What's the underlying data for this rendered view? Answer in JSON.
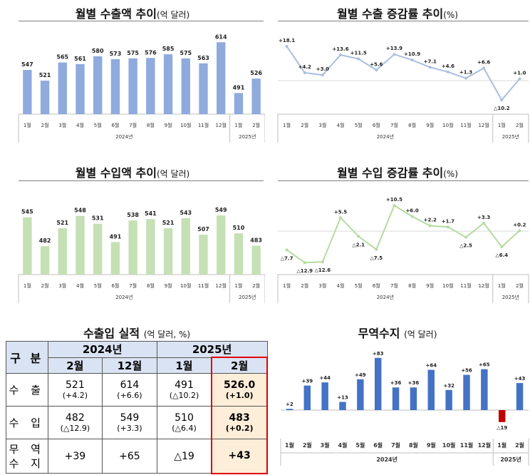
{
  "panels": {
    "export_amount": {
      "title": "월별 수출액 추이",
      "unit": "(억 달러)",
      "months": [
        "1월",
        "2월",
        "3월",
        "4월",
        "5월",
        "6월",
        "7월",
        "8월",
        "9월",
        "10월",
        "11월",
        "12월",
        "1월",
        "2월"
      ],
      "values": [
        547,
        521,
        565,
        561,
        580,
        573,
        575,
        576,
        585,
        575,
        563,
        614,
        491,
        526
      ],
      "labels": [
        "547",
        "521",
        "565",
        "561",
        "580",
        "573",
        "575",
        "576",
        "585",
        "575",
        "563",
        "614",
        "491",
        "526"
      ],
      "year_labels": [
        "2024년",
        "2025년"
      ],
      "color": "#8faadc"
    },
    "export_growth": {
      "title": "월별 수출 증감률 추이",
      "unit": "(%)",
      "months": [
        "1월",
        "2월",
        "3월",
        "4월",
        "5월",
        "6월",
        "7월",
        "8월",
        "9월",
        "10월",
        "11월",
        "12월",
        "1월",
        "2월"
      ],
      "values": [
        18.1,
        4.2,
        3.0,
        13.6,
        11.5,
        5.6,
        13.9,
        10.9,
        7.1,
        4.6,
        1.3,
        6.6,
        -10.2,
        1.0
      ],
      "labels": [
        "+18.1",
        "+4.2",
        "+3.0",
        "+13.6",
        "+11.5",
        "+5.6",
        "+13.9",
        "+10.9",
        "+7.1",
        "+4.6",
        "+1.3",
        "+6.6",
        "△10.2",
        "+1.0"
      ],
      "year_labels": [
        "2024년",
        "2025년"
      ],
      "color": "#a9bfdf"
    },
    "import_amount": {
      "title": "월별 수입액 추이",
      "unit": "(억 달러)",
      "months": [
        "1월",
        "2월",
        "3월",
        "4월",
        "5월",
        "6월",
        "7월",
        "8월",
        "9월",
        "10월",
        "11월",
        "12월",
        "1월",
        "2월"
      ],
      "values": [
        545,
        482,
        521,
        548,
        531,
        491,
        538,
        541,
        521,
        543,
        507,
        549,
        510,
        483
      ],
      "labels": [
        "545",
        "482",
        "521",
        "548",
        "531",
        "491",
        "538",
        "541",
        "521",
        "543",
        "507",
        "549",
        "510",
        "483"
      ],
      "year_labels": [
        "2024년",
        "2025년"
      ],
      "color": "#c5e0b4"
    },
    "import_growth": {
      "title": "월별 수입 증감률 추이",
      "unit": "(%)",
      "months": [
        "1월",
        "2월",
        "3월",
        "4월",
        "5월",
        "6월",
        "7월",
        "8월",
        "9월",
        "10월",
        "11월",
        "12월",
        "1월",
        "2월"
      ],
      "values": [
        -7.7,
        -12.9,
        -12.6,
        5.5,
        -2.1,
        -7.5,
        10.5,
        6.0,
        2.2,
        1.7,
        -2.5,
        3.3,
        -6.4,
        0.2
      ],
      "labels": [
        "△7.7",
        "△12.9",
        "△12.6",
        "+5.5",
        "△2.1",
        "△7.5",
        "+10.5",
        "+6.0",
        "+2.2",
        "+1.7",
        "△2.5",
        "+3.3",
        "△6.4",
        "+0.2"
      ],
      "year_labels": [
        "2024년",
        "2025년"
      ],
      "color": "#b5dba0"
    },
    "balance": {
      "title": "무역수지",
      "unit": "(억 달러)",
      "months": [
        "1월",
        "2월",
        "3월",
        "4월",
        "5월",
        "6월",
        "7월",
        "8월",
        "9월",
        "10월",
        "11월",
        "12월",
        "1월",
        "2월"
      ],
      "values": [
        2,
        39,
        44,
        13,
        49,
        83,
        36,
        36,
        64,
        32,
        56,
        65,
        -19,
        43
      ],
      "labels": [
        "+2",
        "+39",
        "+44",
        "+13",
        "+49",
        "+83",
        "+36",
        "+36",
        "+64",
        "+32",
        "+56",
        "+65",
        "△19",
        "+43"
      ],
      "year_labels": [
        "2024년",
        "2025년"
      ],
      "color": "#4472c4",
      "neg_color": "#c00000"
    }
  },
  "table": {
    "title": "수출입 실적",
    "unit": "(억 달러, %)",
    "corner": "구 분",
    "year_2024": "2024년",
    "year_2025": "2025년",
    "col_feb24": "2월",
    "col_dec24": "12월",
    "col_jan25": "1월",
    "col_feb25": "2월",
    "export_label": "수 출",
    "import_label": "수 입",
    "balance_label_1": "무 역",
    "balance_label_2": "수 지",
    "export": {
      "v1": "521",
      "r1": "(+4.2)",
      "v2": "614",
      "r2": "(+6.6)",
      "v3": "491",
      "r3": "(△10.2)",
      "v4": "526.0",
      "r4": "(+1.0)"
    },
    "import": {
      "v1": "482",
      "r1": "(△12.9)",
      "v2": "549",
      "r2": "(+3.3)",
      "v3": "510",
      "r3": "(△6.4)",
      "v4": "483",
      "r4": "(+0.2)"
    },
    "balance": {
      "v1": "+39",
      "v2": "+65",
      "v3": "△19",
      "v4": "+43"
    }
  },
  "chart_data": [
    {
      "type": "bar",
      "title": "월별 수출액 추이(억 달러)",
      "categories": [
        "1월",
        "2월",
        "3월",
        "4월",
        "5월",
        "6월",
        "7월",
        "8월",
        "9월",
        "10월",
        "11월",
        "12월",
        "1월",
        "2월"
      ],
      "values": [
        547,
        521,
        565,
        561,
        580,
        573,
        575,
        576,
        585,
        575,
        563,
        614,
        491,
        526
      ]
    },
    {
      "type": "line",
      "title": "월별 수출 증감률 추이(%)",
      "categories": [
        "1월",
        "2월",
        "3월",
        "4월",
        "5월",
        "6월",
        "7월",
        "8월",
        "9월",
        "10월",
        "11월",
        "12월",
        "1월",
        "2월"
      ],
      "values": [
        18.1,
        4.2,
        3.0,
        13.6,
        11.5,
        5.6,
        13.9,
        10.9,
        7.1,
        4.6,
        1.3,
        6.6,
        -10.2,
        1.0
      ]
    },
    {
      "type": "bar",
      "title": "월별 수입액 추이(억 달러)",
      "categories": [
        "1월",
        "2월",
        "3월",
        "4월",
        "5월",
        "6월",
        "7월",
        "8월",
        "9월",
        "10월",
        "11월",
        "12월",
        "1월",
        "2월"
      ],
      "values": [
        545,
        482,
        521,
        548,
        531,
        491,
        538,
        541,
        521,
        543,
        507,
        549,
        510,
        483
      ]
    },
    {
      "type": "line",
      "title": "월별 수입 증감률 추이(%)",
      "categories": [
        "1월",
        "2월",
        "3월",
        "4월",
        "5월",
        "6월",
        "7월",
        "8월",
        "9월",
        "10월",
        "11월",
        "12월",
        "1월",
        "2월"
      ],
      "values": [
        -7.7,
        -12.9,
        -12.6,
        5.5,
        -2.1,
        -7.5,
        10.5,
        6.0,
        2.2,
        1.7,
        -2.5,
        3.3,
        -6.4,
        0.2
      ]
    },
    {
      "type": "table",
      "title": "수출입 실적(억 달러, %)",
      "columns": [
        "2024년 2월",
        "2024년 12월",
        "2025년 1월",
        "2025년 2월"
      ],
      "rows": [
        {
          "name": "수출",
          "values": [
            521,
            614,
            491,
            526.0
          ],
          "growth": [
            4.2,
            6.6,
            -10.2,
            1.0
          ]
        },
        {
          "name": "수입",
          "values": [
            482,
            549,
            510,
            483
          ],
          "growth": [
            -12.9,
            3.3,
            -6.4,
            0.2
          ]
        },
        {
          "name": "무역수지",
          "values": [
            39,
            65,
            -19,
            43
          ]
        }
      ]
    },
    {
      "type": "bar",
      "title": "무역수지(억 달러)",
      "categories": [
        "1월",
        "2월",
        "3월",
        "4월",
        "5월",
        "6월",
        "7월",
        "8월",
        "9월",
        "10월",
        "11월",
        "12월",
        "1월",
        "2월"
      ],
      "values": [
        2,
        39,
        44,
        13,
        49,
        83,
        36,
        36,
        64,
        32,
        56,
        65,
        -19,
        43
      ]
    }
  ]
}
